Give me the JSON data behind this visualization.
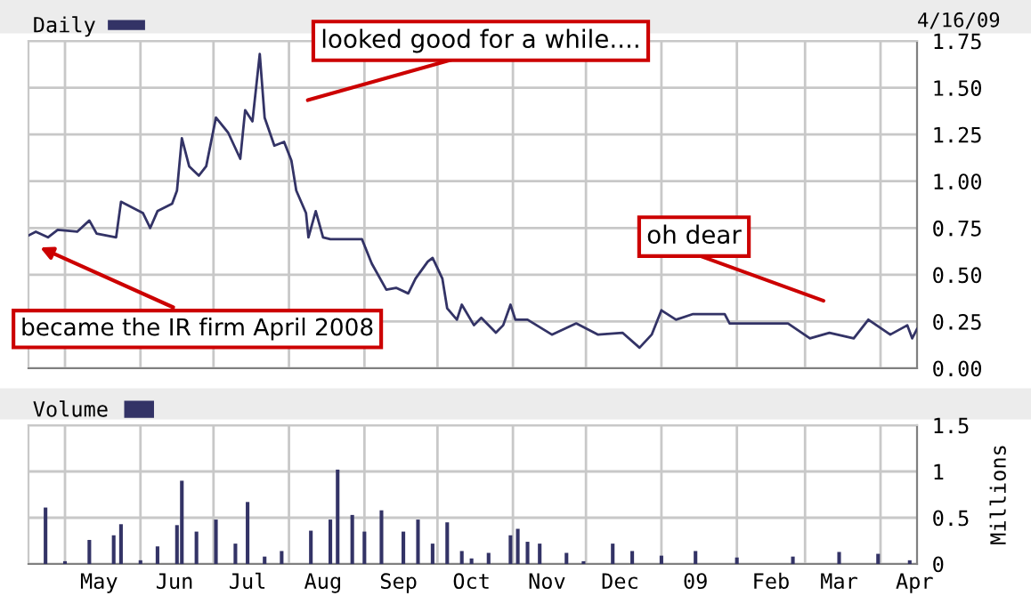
{
  "chart_data": [
    {
      "type": "line",
      "xlim": [
        "2008-04-16",
        "2009-04-16"
      ],
      "ylim": [
        0,
        1.75
      ],
      "yticks": [
        {
          "value": 0,
          "label": "0.00"
        },
        {
          "value": 0.25,
          "label": "0.25"
        },
        {
          "value": 0.5,
          "label": "0.50"
        },
        {
          "value": 0.75,
          "label": "0.75"
        },
        {
          "value": 1,
          "label": "1.00"
        },
        {
          "value": 1.25,
          "label": "1.25"
        },
        {
          "value": 1.5,
          "label": "1.50"
        },
        {
          "value": 1.75,
          "label": "1.75"
        }
      ],
      "xticks": [
        {
          "value": "2008-05-01",
          "label": null
        },
        {
          "value": "2008-06-01",
          "label": null
        },
        {
          "value": "2008-07-01",
          "label": null
        },
        {
          "value": "2008-08-01",
          "label": null
        },
        {
          "value": "2008-09-01",
          "label": null
        },
        {
          "value": "2008-10-01",
          "label": null
        },
        {
          "value": "2008-11-01",
          "label": null
        },
        {
          "value": "2008-12-01",
          "label": null
        },
        {
          "value": "2009-01-01",
          "label": null
        },
        {
          "value": "2009-02-01",
          "label": null
        },
        {
          "value": "2009-03-01",
          "label": null
        },
        {
          "value": "2009-04-01",
          "label": null
        }
      ],
      "tick_labels": "y",
      "grid": true,
      "legend": "top left",
      "line_style": "solid",
      "marker": "none",
      "series": [
        {
          "name": "Daily",
          "color": "#333366",
          "x": [
            "2008-04-16",
            "2008-04-19",
            "2008-04-24",
            "2008-04-28",
            "2008-05-06",
            "2008-05-11",
            "2008-05-14",
            "2008-05-22",
            "2008-05-24",
            "2008-06-02",
            "2008-06-05",
            "2008-06-08",
            "2008-06-14",
            "2008-06-16",
            "2008-06-18",
            "2008-06-21",
            "2008-06-25",
            "2008-06-28",
            "2008-07-02",
            "2008-07-07",
            "2008-07-12",
            "2008-07-14",
            "2008-07-17",
            "2008-07-20",
            "2008-07-22",
            "2008-07-26",
            "2008-07-30",
            "2008-08-02",
            "2008-08-04",
            "2008-08-08",
            "2008-08-09",
            "2008-08-12",
            "2008-08-15",
            "2008-08-18",
            "2008-08-31",
            "2008-09-04",
            "2008-09-10",
            "2008-09-14",
            "2008-09-19",
            "2008-09-22",
            "2008-09-27",
            "2008-09-29",
            "2008-10-03",
            "2008-10-05",
            "2008-10-09",
            "2008-10-11",
            "2008-10-16",
            "2008-10-19",
            "2008-10-25",
            "2008-10-28",
            "2008-10-31",
            "2008-11-02",
            "2008-11-07",
            "2008-11-17",
            "2008-11-27",
            "2008-12-06",
            "2008-12-16",
            "2008-12-23",
            "2008-12-28",
            "2009-01-01",
            "2009-01-07",
            "2009-01-14",
            "2009-01-27",
            "2009-01-29",
            "2009-02-15",
            "2009-02-22",
            "2009-03-03",
            "2009-03-11",
            "2009-03-21",
            "2009-03-27",
            "2009-04-05",
            "2009-04-12",
            "2009-04-14",
            "2009-04-16"
          ],
          "values": [
            0.71,
            0.73,
            0.7,
            0.74,
            0.73,
            0.79,
            0.72,
            0.7,
            0.89,
            0.83,
            0.75,
            0.84,
            0.88,
            0.95,
            1.23,
            1.08,
            1.03,
            1.08,
            1.34,
            1.26,
            1.12,
            1.38,
            1.32,
            1.68,
            1.34,
            1.19,
            1.21,
            1.11,
            0.95,
            0.83,
            0.7,
            0.84,
            0.7,
            0.69,
            0.69,
            0.56,
            0.42,
            0.43,
            0.4,
            0.48,
            0.57,
            0.59,
            0.48,
            0.32,
            0.26,
            0.34,
            0.23,
            0.27,
            0.19,
            0.23,
            0.34,
            0.26,
            0.26,
            0.18,
            0.24,
            0.18,
            0.19,
            0.11,
            0.18,
            0.31,
            0.26,
            0.29,
            0.29,
            0.24,
            0.24,
            0.24,
            0.16,
            0.19,
            0.16,
            0.26,
            0.18,
            0.23,
            0.16,
            0.21
          ]
        }
      ],
      "annotations": [
        "looked good for a while....",
        "oh dear",
        "became the IR firm April 2008",
        "4/16/09"
      ]
    },
    {
      "type": "bar",
      "xlim": [
        "2008-04-16",
        "2009-04-16"
      ],
      "ylim": [
        0,
        1.5
      ],
      "yticks": [
        0,
        0.5,
        1,
        1.5
      ],
      "ylabel": "Millions",
      "xticks": [
        {
          "value": "2008-05-01",
          "label": null
        },
        {
          "value": "2008-05-15",
          "label": "May"
        },
        {
          "value": "2008-06-01",
          "label": null
        },
        {
          "value": "2008-06-15",
          "label": "Jun"
        },
        {
          "value": "2008-07-01",
          "label": null
        },
        {
          "value": "2008-07-15",
          "label": "Jul"
        },
        {
          "value": "2008-08-01",
          "label": null
        },
        {
          "value": "2008-08-15",
          "label": "Aug"
        },
        {
          "value": "2008-09-01",
          "label": null
        },
        {
          "value": "2008-09-15",
          "label": "Sep"
        },
        {
          "value": "2008-10-01",
          "label": null
        },
        {
          "value": "2008-10-15",
          "label": "Oct"
        },
        {
          "value": "2008-11-01",
          "label": null
        },
        {
          "value": "2008-11-15",
          "label": "Nov"
        },
        {
          "value": "2008-12-01",
          "label": null
        },
        {
          "value": "2008-12-15",
          "label": "Dec"
        },
        {
          "value": "2009-01-01",
          "label": null
        },
        {
          "value": "2009-01-15",
          "label": "09"
        },
        {
          "value": "2009-02-01",
          "label": null
        },
        {
          "value": "2009-02-15",
          "label": "Feb"
        },
        {
          "value": "2009-03-01",
          "label": null
        },
        {
          "value": "2009-03-15",
          "label": "Mar"
        },
        {
          "value": "2009-04-01",
          "label": null
        },
        {
          "value": "2009-04-15",
          "label": "Apr"
        }
      ],
      "grid": true,
      "legend": "top left",
      "series": [
        {
          "name": "Volume",
          "color": "#333366",
          "x": [
            "2008-04-23",
            "2008-05-01",
            "2008-05-11",
            "2008-05-21",
            "2008-05-24",
            "2008-06-01",
            "2008-06-08",
            "2008-06-16",
            "2008-06-18",
            "2008-06-24",
            "2008-07-02",
            "2008-07-10",
            "2008-07-15",
            "2008-07-22",
            "2008-07-29",
            "2008-08-10",
            "2008-08-18",
            "2008-08-21",
            "2008-08-27",
            "2008-09-01",
            "2008-09-08",
            "2008-09-17",
            "2008-09-23",
            "2008-09-29",
            "2008-10-05",
            "2008-10-11",
            "2008-10-15",
            "2008-10-22",
            "2008-10-31",
            "2008-11-03",
            "2008-11-07",
            "2008-11-12",
            "2008-11-23",
            "2008-11-30",
            "2008-12-12",
            "2008-12-20",
            "2009-01-01",
            "2009-01-15",
            "2009-02-01",
            "2009-02-24",
            "2009-03-15",
            "2009-03-31",
            "2009-04-13"
          ],
          "values": [
            0.61,
            0.03,
            0.26,
            0.31,
            0.43,
            0.04,
            0.19,
            0.42,
            0.9,
            0.35,
            0.48,
            0.22,
            0.67,
            0.08,
            0.14,
            0.36,
            0.48,
            1.02,
            0.53,
            0.35,
            0.58,
            0.35,
            0.48,
            0.22,
            0.45,
            0.14,
            0.06,
            0.12,
            0.31,
            0.38,
            0.24,
            0.22,
            0.12,
            0.03,
            0.22,
            0.14,
            0.09,
            0.14,
            0.07,
            0.08,
            0.13,
            0.11,
            0.04
          ]
        }
      ]
    }
  ]
}
